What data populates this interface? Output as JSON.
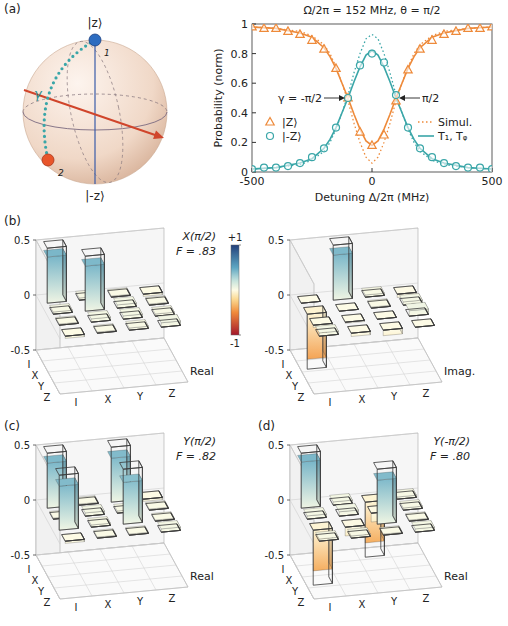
{
  "bloch": {
    "top_label": "|z⟩",
    "bottom_label": "|-z⟩",
    "path_label": "γ",
    "start_label": "1",
    "end_label": "2"
  },
  "chart_data": [
    {
      "type": "line",
      "panel_label": "(a)",
      "title": "Ω/2π = 152 MHz, θ = π/2",
      "x_label": "Detuning Δ/2π (MHz)",
      "y_label": "Probability (norm)",
      "xlim": [
        -500,
        500
      ],
      "xticks": [
        -500,
        0,
        500
      ],
      "ylim": [
        0,
        1
      ],
      "yticks": [
        0,
        0.2,
        0.4,
        0.6,
        0.8,
        1
      ],
      "grid": false,
      "legend": "bottom",
      "series": [
        {
          "name": "|Z⟩",
          "type": "scatter",
          "marker": "triangle",
          "color": "#ee8a3a",
          "x": [
            -500,
            -450,
            -400,
            -350,
            -300,
            -250,
            -200,
            -150,
            -100,
            -50,
            0,
            50,
            100,
            150,
            200,
            250,
            300,
            350,
            400,
            450,
            500
          ],
          "values": [
            0.98,
            0.97,
            0.97,
            0.95,
            0.93,
            0.89,
            0.83,
            0.7,
            0.5,
            0.27,
            0.18,
            0.25,
            0.48,
            0.69,
            0.83,
            0.89,
            0.93,
            0.95,
            0.97,
            0.97,
            0.98
          ]
        },
        {
          "name": "|-Z⟩",
          "type": "scatter",
          "marker": "circle",
          "color": "#3aa6a8",
          "x": [
            -500,
            -450,
            -400,
            -350,
            -300,
            -250,
            -200,
            -150,
            -100,
            -50,
            0,
            50,
            100,
            150,
            200,
            250,
            300,
            350,
            400,
            450,
            500
          ],
          "values": [
            0.02,
            0.03,
            0.03,
            0.04,
            0.06,
            0.1,
            0.16,
            0.3,
            0.5,
            0.72,
            0.8,
            0.74,
            0.52,
            0.3,
            0.16,
            0.1,
            0.06,
            0.04,
            0.03,
            0.03,
            0.02
          ]
        },
        {
          "name": "Simul.",
          "type": "line",
          "line_style": "dotted",
          "color": "#ee8a3a",
          "x": [
            -500,
            -400,
            -300,
            -250,
            -200,
            -175,
            -150,
            -125,
            -100,
            -75,
            -50,
            -25,
            0,
            25,
            50,
            75,
            100,
            125,
            150,
            175,
            200,
            250,
            300,
            400,
            500
          ],
          "values": [
            0.98,
            0.97,
            0.95,
            0.92,
            0.86,
            0.8,
            0.71,
            0.6,
            0.48,
            0.33,
            0.2,
            0.1,
            0.06,
            0.1,
            0.2,
            0.33,
            0.48,
            0.6,
            0.71,
            0.8,
            0.86,
            0.92,
            0.95,
            0.97,
            0.98
          ]
        },
        {
          "name": "Simul.",
          "type": "line",
          "line_style": "dotted",
          "color": "#3aa6a8",
          "x": [
            -500,
            -400,
            -300,
            -250,
            -200,
            -175,
            -150,
            -125,
            -100,
            -75,
            -50,
            -25,
            0,
            25,
            50,
            75,
            100,
            125,
            150,
            175,
            200,
            250,
            300,
            400,
            500
          ],
          "values": [
            0.02,
            0.03,
            0.05,
            0.08,
            0.14,
            0.2,
            0.29,
            0.4,
            0.52,
            0.67,
            0.8,
            0.9,
            0.93,
            0.9,
            0.8,
            0.67,
            0.52,
            0.4,
            0.29,
            0.2,
            0.14,
            0.08,
            0.05,
            0.03,
            0.02
          ]
        },
        {
          "name": "T₁, Tᵩ",
          "type": "line",
          "line_style": "solid",
          "color": "#3aa6a8",
          "x": [
            -500,
            -400,
            -300,
            -250,
            -200,
            -175,
            -150,
            -125,
            -100,
            -75,
            -50,
            -25,
            0,
            25,
            50,
            75,
            100,
            125,
            150,
            175,
            200,
            250,
            300,
            400,
            500
          ],
          "values": [
            0.02,
            0.03,
            0.06,
            0.09,
            0.16,
            0.22,
            0.3,
            0.4,
            0.5,
            0.61,
            0.71,
            0.79,
            0.82,
            0.79,
            0.71,
            0.61,
            0.5,
            0.4,
            0.3,
            0.22,
            0.16,
            0.09,
            0.06,
            0.03,
            0.02
          ]
        },
        {
          "name": "T₁, Tᵩ",
          "type": "line",
          "line_style": "solid",
          "color": "#ee8a3a",
          "x": [
            -500,
            -400,
            -300,
            -250,
            -200,
            -175,
            -150,
            -125,
            -100,
            -75,
            -50,
            -25,
            0,
            25,
            50,
            75,
            100,
            125,
            150,
            175,
            200,
            250,
            300,
            400,
            500
          ],
          "values": [
            0.98,
            0.97,
            0.94,
            0.91,
            0.84,
            0.78,
            0.7,
            0.6,
            0.5,
            0.39,
            0.29,
            0.21,
            0.18,
            0.21,
            0.29,
            0.39,
            0.5,
            0.6,
            0.7,
            0.78,
            0.84,
            0.91,
            0.94,
            0.97,
            0.98
          ]
        }
      ],
      "annotations": [
        {
          "text": "γ = -π/2",
          "x": -100,
          "y": 0.5
        },
        {
          "text": "π/2",
          "x": 100,
          "y": 0.5
        }
      ]
    },
    {
      "type": "bar3d",
      "panel_label": "(b)",
      "title": "X(π/2)",
      "fidelity": "F = .83",
      "part": "Real",
      "row_labels": [
        "I",
        "X",
        "Y",
        "Z"
      ],
      "col_labels": [
        "I",
        "X",
        "Y",
        "Z"
      ],
      "zlim": [
        -0.5,
        0.5
      ],
      "zticks": [
        -0.5,
        0,
        0.5
      ],
      "measured": [
        [
          0.42,
          0.02,
          0.01,
          -0.02
        ],
        [
          0.02,
          0.41,
          0.03,
          0.01
        ],
        [
          0.01,
          0.03,
          0.03,
          0.02
        ],
        [
          -0.02,
          0.01,
          0.02,
          0.04
        ]
      ],
      "ideal": [
        [
          0.5,
          0,
          0,
          0
        ],
        [
          0,
          0.5,
          0,
          0
        ],
        [
          0,
          0,
          0,
          0
        ],
        [
          0,
          0,
          0,
          0
        ]
      ],
      "colorbar": {
        "lim": [
          -1,
          1
        ],
        "ticks": [
          {
            "value": 1,
            "label": "+1"
          },
          {
            "value": -1,
            "label": "-1"
          }
        ]
      }
    },
    {
      "type": "bar3d",
      "part": "Imag.",
      "row_labels": [
        "I",
        "X",
        "Y",
        "Z"
      ],
      "col_labels": [
        "I",
        "X",
        "Y",
        "Z"
      ],
      "zlim": [
        -0.5,
        0.5
      ],
      "zticks": [
        -0.5,
        0,
        0.5
      ],
      "measured": [
        [
          0,
          0.41,
          0.02,
          -0.03
        ],
        [
          -0.41,
          0,
          0.01,
          0.03
        ],
        [
          -0.02,
          -0.01,
          0,
          0.05
        ],
        [
          0.03,
          -0.03,
          -0.05,
          0
        ]
      ],
      "ideal": [
        [
          0,
          0.5,
          0,
          0
        ],
        [
          -0.5,
          0,
          0,
          0
        ],
        [
          0,
          0,
          0,
          0
        ],
        [
          0,
          0,
          0,
          0
        ]
      ]
    },
    {
      "type": "bar3d",
      "panel_label": "(c)",
      "title": "Y(π/2)",
      "fidelity": "F = .82",
      "part": "Real",
      "row_labels": [
        "I",
        "X",
        "Y",
        "Z"
      ],
      "col_labels": [
        "I",
        "X",
        "Y",
        "Z"
      ],
      "zlim": [
        -0.5,
        0.5
      ],
      "zticks": [
        -0.5,
        0,
        0.5
      ],
      "measured": [
        [
          0.41,
          0.01,
          0.4,
          -0.02
        ],
        [
          0.01,
          0.03,
          0.02,
          0.01
        ],
        [
          0.4,
          0.02,
          0.38,
          0.01
        ],
        [
          -0.02,
          0.01,
          0.01,
          0.03
        ]
      ],
      "ideal": [
        [
          0.5,
          0,
          0.5,
          0
        ],
        [
          0,
          0,
          0,
          0
        ],
        [
          0.5,
          0,
          0.5,
          0
        ],
        [
          0,
          0,
          0,
          0
        ]
      ]
    },
    {
      "type": "bar3d",
      "panel_label": "(d)",
      "title": "Y(-π/2)",
      "fidelity": "F = .80",
      "part": "Real",
      "row_labels": [
        "I",
        "X",
        "Y",
        "Z"
      ],
      "col_labels": [
        "I",
        "X",
        "Y",
        "Z"
      ],
      "zlim": [
        -0.5,
        0.5
      ],
      "zticks": [
        -0.5,
        0,
        0.5
      ],
      "measured": [
        [
          0.42,
          0.03,
          -0.37,
          0.02
        ],
        [
          0.03,
          0.04,
          -0.08,
          0.02
        ],
        [
          -0.37,
          -0.08,
          0.4,
          0.01
        ],
        [
          0.02,
          0.02,
          0.01,
          0.03
        ]
      ],
      "ideal": [
        [
          0.5,
          0,
          -0.5,
          0
        ],
        [
          0,
          0,
          0,
          0
        ],
        [
          -0.5,
          0,
          0.5,
          0
        ],
        [
          0,
          0,
          0,
          0
        ]
      ]
    }
  ]
}
